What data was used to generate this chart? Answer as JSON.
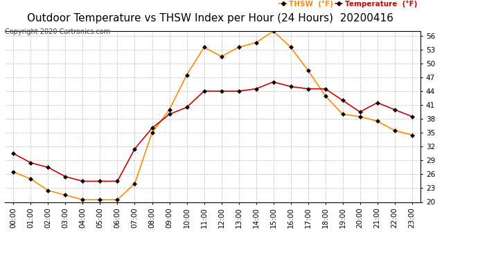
{
  "title": "Outdoor Temperature vs THSW Index per Hour (24 Hours)  20200416",
  "copyright": "Copyright 2020 Cartronics.com",
  "hours": [
    "00:00",
    "01:00",
    "02:00",
    "03:00",
    "04:00",
    "05:00",
    "06:00",
    "07:00",
    "08:00",
    "09:00",
    "10:00",
    "11:00",
    "12:00",
    "13:00",
    "14:00",
    "15:00",
    "16:00",
    "17:00",
    "18:00",
    "19:00",
    "20:00",
    "21:00",
    "22:00",
    "23:00"
  ],
  "temperature": [
    30.5,
    28.5,
    27.5,
    25.5,
    24.5,
    24.5,
    24.5,
    31.5,
    36.0,
    39.0,
    40.5,
    44.0,
    44.0,
    44.0,
    44.5,
    46.0,
    45.0,
    44.5,
    44.5,
    42.0,
    39.5,
    41.5,
    40.0,
    38.5
  ],
  "thsw": [
    26.5,
    25.0,
    22.5,
    21.5,
    20.5,
    20.5,
    20.5,
    24.0,
    35.0,
    40.0,
    47.5,
    53.5,
    51.5,
    53.5,
    54.5,
    57.0,
    53.5,
    48.5,
    43.0,
    39.0,
    38.5,
    37.5,
    35.5,
    34.5
  ],
  "temp_color": "#cc0000",
  "thsw_color": "#ff8800",
  "marker_color": "#000000",
  "ylim": [
    20.0,
    57.0
  ],
  "yticks": [
    20.0,
    23.0,
    26.0,
    29.0,
    32.0,
    35.0,
    38.0,
    41.0,
    44.0,
    47.0,
    50.0,
    53.0,
    56.0
  ],
  "legend_thsw": "THSW  (°F)",
  "legend_temp": "Temperature  (°F)",
  "bg_color": "#ffffff",
  "grid_color": "#bbbbbb",
  "title_fontsize": 11,
  "label_fontsize": 7.5,
  "copyright_fontsize": 7,
  "tick_fontsize": 7.5
}
